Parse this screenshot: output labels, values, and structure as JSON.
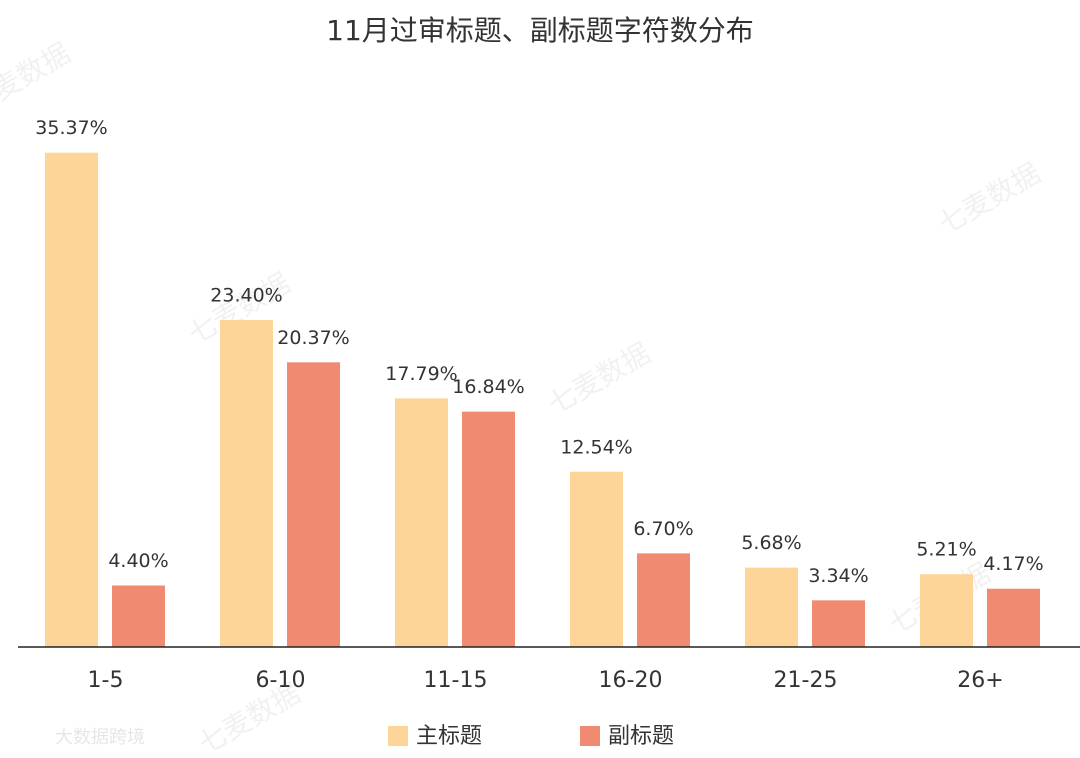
{
  "chart_data": {
    "type": "bar",
    "title": "11月过审标题、副标题字符数分布",
    "categories": [
      "1-5",
      "6-10",
      "11-15",
      "16-20",
      "21-25",
      "26+"
    ],
    "series": [
      {
        "name": "主标题",
        "color": "#fdd598",
        "values": [
          35.37,
          23.4,
          17.79,
          12.54,
          5.68,
          5.21
        ],
        "value_labels": [
          "35.37%",
          "23.40%",
          "17.79%",
          "12.54%",
          "5.68%",
          "5.21%"
        ]
      },
      {
        "name": "副标题",
        "color": "#f08a70",
        "values": [
          4.4,
          20.37,
          16.84,
          6.7,
          3.34,
          4.17
        ],
        "value_labels": [
          "4.40%",
          "20.37%",
          "16.84%",
          "6.70%",
          "3.34%",
          "4.17%"
        ]
      }
    ],
    "ylim": [
      0,
      40
    ],
    "watermarks": [
      "七麦数据",
      "大数据跨境"
    ]
  }
}
